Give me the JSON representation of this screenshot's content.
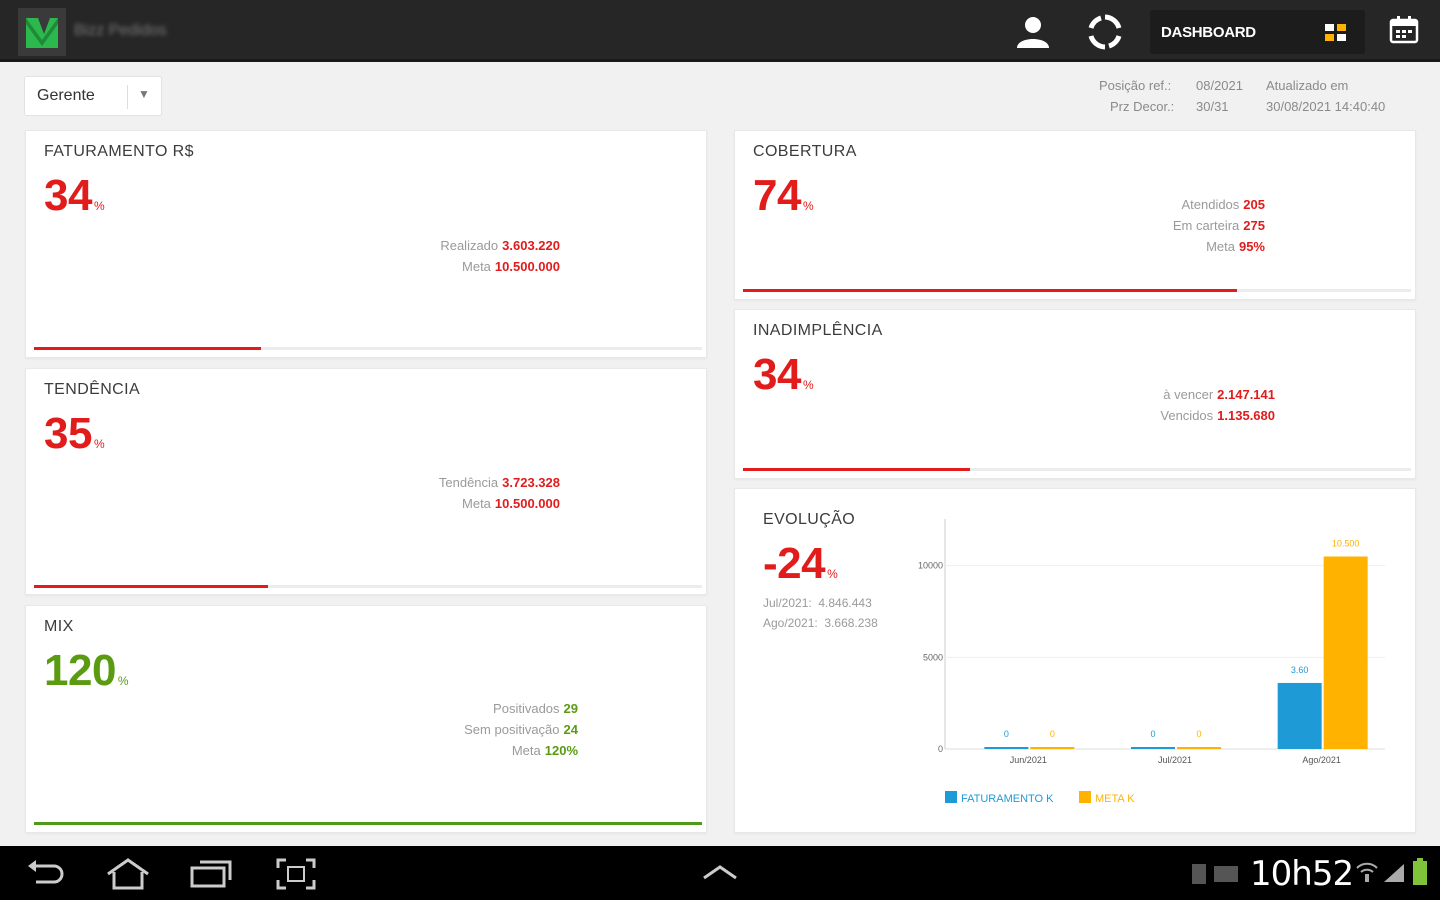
{
  "topbar": {
    "app_name": "Bizz Pedidos",
    "dashboard_label": "DASHBOARD"
  },
  "filter": {
    "selected": "Gerente"
  },
  "info": {
    "position_label": "Posição ref.:",
    "position_value": "08/2021",
    "updated_label": "Atualizado em",
    "elapsed_label": "Prz Decor.:",
    "elapsed_value": "30/31",
    "updated_value": "30/08/2021 14:40:40"
  },
  "cards": {
    "faturamento": {
      "title": "FATURAMENTO R$",
      "value": "34",
      "unit": "%",
      "realizado_label": "Realizado",
      "realizado_value": "3.603.220",
      "meta_label": "Meta",
      "meta_value": "10.500.000",
      "progress": 0.34
    },
    "tendencia": {
      "title": "TENDÊNCIA",
      "value": "35",
      "unit": "%",
      "tendencia_label": "Tendência",
      "tendencia_value": "3.723.328",
      "meta_label": "Meta",
      "meta_value": "10.500.000",
      "progress": 0.35
    },
    "mix": {
      "title": "MIX",
      "value": "120",
      "unit": "%",
      "positivados_label": "Positivados",
      "positivados_value": "29",
      "sem_label": "Sem positivação",
      "sem_value": "24",
      "meta_label": "Meta",
      "meta_value": "120%",
      "progress": 1.0
    },
    "cobertura": {
      "title": "COBERTURA",
      "value": "74",
      "unit": "%",
      "atendidos_label": "Atendidos",
      "atendidos_value": "205",
      "carteira_label": "Em carteira",
      "carteira_value": "275",
      "meta_label": "Meta",
      "meta_value": "95%",
      "progress": 0.74
    },
    "inadimplencia": {
      "title": "INADIMPLÊNCIA",
      "value": "34",
      "unit": "%",
      "vencer_label": "à vencer",
      "vencer_value": "2.147.141",
      "vencidos_label": "Vencidos",
      "vencidos_value": "1.135.680",
      "progress": 0.34
    },
    "evolucao": {
      "title": "EVOLUÇÃO",
      "value": "-24",
      "unit": "%",
      "jul_label": "Jul/2021:",
      "jul_value": "4.846.443",
      "ago_label": "Ago/2021:",
      "ago_value": "3.668.238"
    }
  },
  "chart_data": {
    "type": "bar",
    "categories": [
      "Jun/2021",
      "Jul/2021",
      "Ago/2021"
    ],
    "series": [
      {
        "name": "FATURAMENTO K",
        "values": [
          0,
          0,
          3603
        ],
        "labels": [
          "0",
          "0",
          "3.60"
        ],
        "color": "#1e9ad6"
      },
      {
        "name": "META K",
        "values": [
          0,
          0,
          10500
        ],
        "labels": [
          "0",
          "0",
          "10.500"
        ],
        "color": "#ffb300"
      }
    ],
    "yticks": [
      "0",
      "5000",
      "10000"
    ],
    "ylim": [
      0,
      12000
    ]
  },
  "statusbar": {
    "time": "10h52"
  },
  "colors": {
    "red": "#e21b1b",
    "green": "#5a9b12",
    "blue": "#1e9ad6",
    "amber": "#ffb300"
  }
}
